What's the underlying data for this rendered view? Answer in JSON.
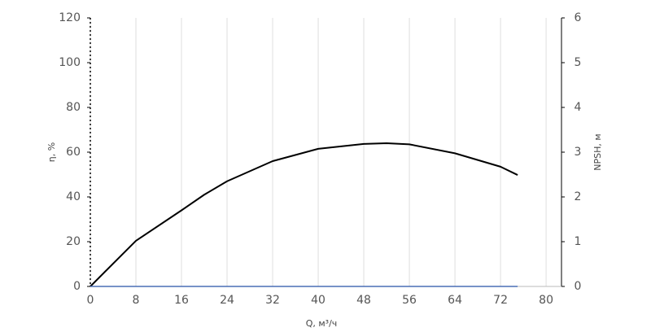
{
  "chart_data": {
    "type": "line",
    "x": [
      0,
      8,
      16,
      20,
      24,
      32,
      40,
      48,
      52,
      56,
      64,
      72,
      75
    ],
    "series": [
      {
        "name": "η",
        "color": "#000000",
        "values": [
          0,
          20.4,
          34,
          41,
          47,
          56,
          61.5,
          63.7,
          64,
          63.5,
          59.5,
          53.5,
          49.8
        ]
      },
      {
        "name": "NPSH",
        "color": "#4a6fb5",
        "axis": "y2",
        "values": [
          0,
          0,
          0,
          0,
          0,
          0,
          0,
          0,
          0,
          0,
          0,
          0,
          0
        ]
      }
    ],
    "x_label": "Q, м³/ч",
    "y_label": "η, %",
    "y2_label": "NPSH, м",
    "xlim": [
      0,
      82.7
    ],
    "xticks": [
      0,
      8,
      16,
      24,
      32,
      40,
      48,
      56,
      64,
      72,
      80
    ],
    "ylim": [
      0,
      120
    ],
    "yticks": [
      0,
      20,
      40,
      60,
      80,
      100,
      120
    ],
    "y2lim": [
      0,
      6
    ],
    "y2ticks": [
      0,
      1,
      2,
      3,
      4,
      5,
      6
    ],
    "grid": true
  }
}
